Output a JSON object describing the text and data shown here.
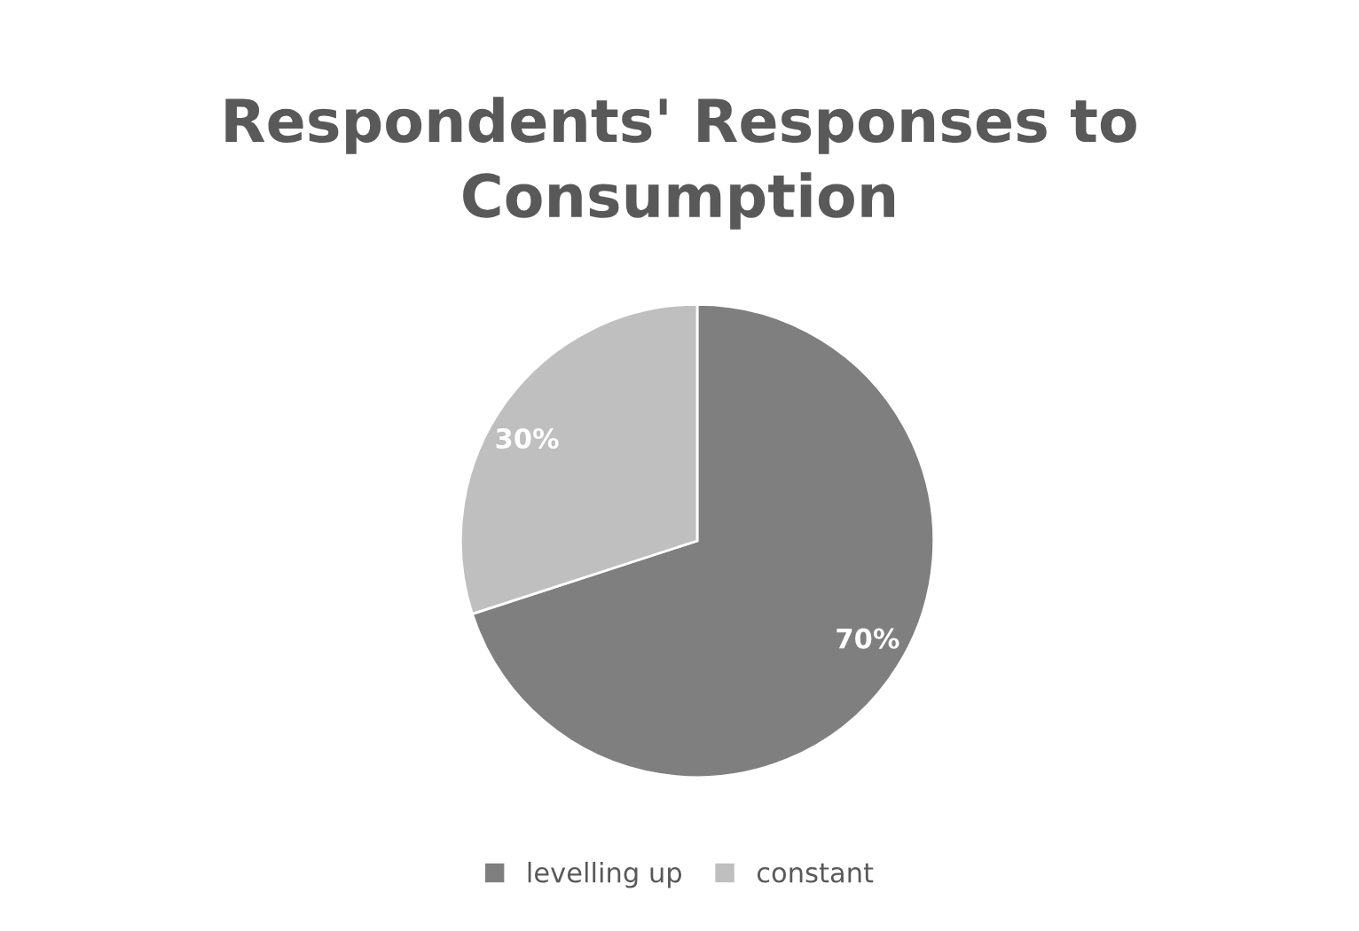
{
  "chart_data": {
    "type": "pie",
    "title": "Respondents' Responses to\nConsumption",
    "categories": [
      "levelling up",
      "constant"
    ],
    "values": [
      70,
      30
    ],
    "colors": [
      "#7f7f7f",
      "#bfbfbf"
    ],
    "value_labels": [
      "70%",
      "30%"
    ],
    "legend": "bottom"
  }
}
